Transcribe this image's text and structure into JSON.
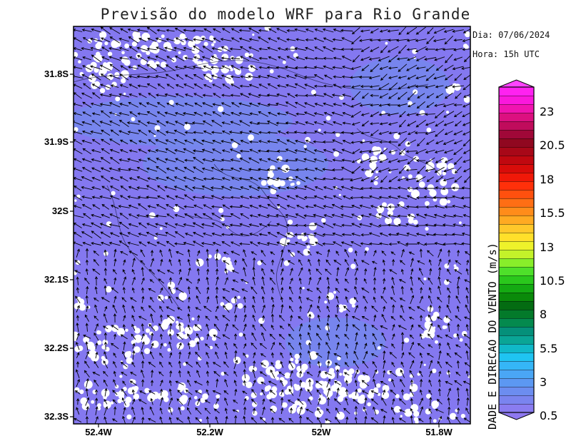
{
  "title": "Previsão do modelo WRF para Rio Grande",
  "info": {
    "date": "Dia: 07/06/2024",
    "hour": "Hora: 15h UTC"
  },
  "axes": {
    "lat_labels": [
      "31.8S",
      "31.9S",
      "32S",
      "32.1S",
      "32.2S",
      "32.3S"
    ],
    "lon_labels": [
      "52.4W",
      "52.2W",
      "52W",
      "51.8W"
    ]
  },
  "colorbar": {
    "title": "DADE E DIRECAO DO VENTO (m/s)",
    "labels": [
      "23",
      "20.5",
      "18",
      "15.5",
      "13",
      "10.5",
      "8",
      "5.5",
      "3",
      "0.5"
    ],
    "colors": [
      "#8a7cf0",
      "#7a84ef",
      "#6c8df0",
      "#5c98f2",
      "#4aa6f5",
      "#35b6f7",
      "#1fc4f2",
      "#10b8c8",
      "#0aa596",
      "#05907a",
      "#048a4e",
      "#037a2a",
      "#046c12",
      "#0a8a0a",
      "#14aa12",
      "#2ac81c",
      "#4ee02a",
      "#88ee2a",
      "#c4f22a",
      "#eef22a",
      "#ffe02a",
      "#ffc82a",
      "#ffaa22",
      "#ff8c1a",
      "#ff6e14",
      "#ff500e",
      "#ff300a",
      "#f01808",
      "#d80c0a",
      "#c00810",
      "#a80818",
      "#900820",
      "#a00838",
      "#c00c5c",
      "#dc1080",
      "#f014b0",
      "#fa18dc",
      "#ff22f0"
    ],
    "under_color": "#8e78f0",
    "over_color": "#ff44ff"
  },
  "map_colors": {
    "calm": "#ffffff",
    "wind_low": "#8478f0",
    "wind_mid": "#7488ee"
  }
}
